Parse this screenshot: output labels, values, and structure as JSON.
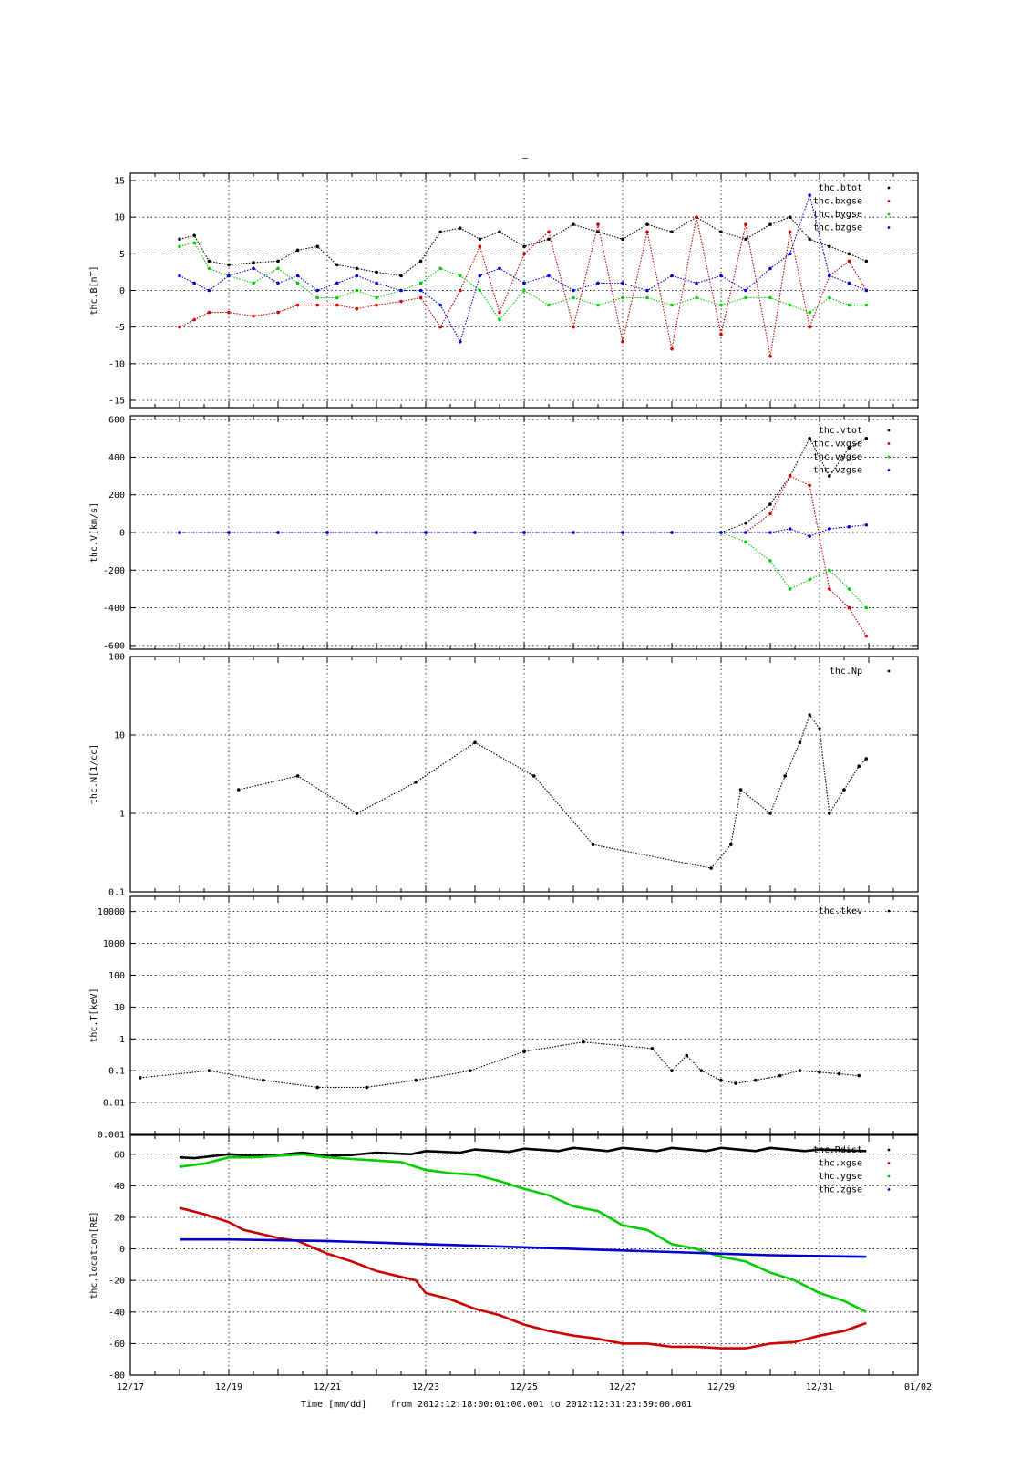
{
  "figure": {
    "top_title": "–",
    "xlabel_time": "Time [mm/dd]",
    "xlabel_range": "from 2012:12:18:00:01:00.001  to  2012:12:31:23:59:00.001",
    "x_tick_labels": [
      "12/17",
      "12/19",
      "12/21",
      "12/23",
      "12/25",
      "12/27",
      "12/29",
      "12/31",
      "01/02"
    ]
  },
  "colors": {
    "black": "#000000",
    "red": "#cc0000",
    "green": "#00cc00",
    "blue": "#0000cc"
  },
  "chart_data": [
    {
      "type": "scatter",
      "ylabel": "thc.B[nT]",
      "xlim": [
        "2012-12-17",
        "2013-01-02"
      ],
      "ylim": [
        -16,
        16
      ],
      "yticks": [
        -15,
        -10,
        -5,
        0,
        5,
        10,
        15
      ],
      "grid": true,
      "legend": "top-right",
      "series": [
        {
          "name": "thc.btot",
          "color": "#000000",
          "x": [
            18.0,
            18.3,
            18.6,
            19.0,
            19.5,
            20.0,
            20.4,
            20.8,
            21.2,
            21.6,
            22.0,
            22.5,
            22.9,
            23.3,
            23.7,
            24.1,
            24.5,
            25.0,
            25.5,
            26.0,
            26.5,
            27.0,
            27.5,
            28.0,
            28.5,
            29.0,
            29.5,
            30.0,
            30.4,
            30.8,
            31.2,
            31.6,
            31.95
          ],
          "y": [
            7,
            7.5,
            4,
            3.5,
            3.8,
            4,
            5.5,
            6,
            3.5,
            3,
            2.5,
            2,
            4,
            8,
            8.5,
            7,
            8,
            6,
            7,
            9,
            8,
            7,
            9,
            8,
            10,
            8,
            7,
            9,
            10,
            7,
            6,
            5,
            4
          ]
        },
        {
          "name": "thc.bxgse",
          "color": "#cc0000",
          "x": [
            18.0,
            18.3,
            18.6,
            19.0,
            19.5,
            20.0,
            20.4,
            20.8,
            21.2,
            21.6,
            22.0,
            22.5,
            22.9,
            23.3,
            23.7,
            24.1,
            24.5,
            25.0,
            25.5,
            26.0,
            26.5,
            27.0,
            27.5,
            28.0,
            28.5,
            29.0,
            29.5,
            30.0,
            30.4,
            30.8,
            31.2,
            31.6,
            31.95
          ],
          "y": [
            -5,
            -4,
            -3,
            -3,
            -3.5,
            -3,
            -2,
            -2,
            -2,
            -2.5,
            -2,
            -1.5,
            -1,
            -5,
            0,
            6,
            -3,
            5,
            8,
            -5,
            9,
            -7,
            8,
            -8,
            10,
            -6,
            9,
            -9,
            8,
            -5,
            2,
            4,
            0
          ]
        },
        {
          "name": "thc.bygse",
          "color": "#00cc00",
          "x": [
            18.0,
            18.3,
            18.6,
            19.0,
            19.5,
            20.0,
            20.4,
            20.8,
            21.2,
            21.6,
            22.0,
            22.5,
            22.9,
            23.3,
            23.7,
            24.1,
            24.5,
            25.0,
            25.5,
            26.0,
            26.5,
            27.0,
            27.5,
            28.0,
            28.5,
            29.0,
            29.5,
            30.0,
            30.4,
            30.8,
            31.2,
            31.6,
            31.95
          ],
          "y": [
            6,
            6.5,
            3,
            2,
            1,
            3,
            1,
            -1,
            -1,
            0,
            -1,
            0,
            1,
            3,
            2,
            0,
            -4,
            0,
            -2,
            -1,
            -2,
            -1,
            -1,
            -2,
            -1,
            -2,
            -1,
            -1,
            -2,
            -3,
            -1,
            -2,
            -2
          ]
        },
        {
          "name": "thc.bzgse",
          "color": "#0000cc",
          "x": [
            18.0,
            18.3,
            18.6,
            19.0,
            19.5,
            20.0,
            20.4,
            20.8,
            21.2,
            21.6,
            22.0,
            22.5,
            22.9,
            23.3,
            23.7,
            24.1,
            24.5,
            25.0,
            25.5,
            26.0,
            26.5,
            27.0,
            27.5,
            28.0,
            28.5,
            29.0,
            29.5,
            30.0,
            30.4,
            30.8,
            31.2,
            31.6,
            31.95
          ],
          "y": [
            2,
            1,
            0,
            2,
            3,
            1,
            2,
            0,
            1,
            2,
            1,
            0,
            0,
            -2,
            -7,
            2,
            3,
            1,
            2,
            0,
            1,
            1,
            0,
            2,
            1,
            2,
            0,
            3,
            5,
            13,
            2,
            1,
            0
          ]
        }
      ]
    },
    {
      "type": "scatter",
      "ylabel": "thc.V[km/s]",
      "xlim": [
        "2012-12-17",
        "2013-01-02"
      ],
      "ylim": [
        -620,
        620
      ],
      "yticks": [
        -600,
        -400,
        -200,
        0,
        200,
        400,
        600
      ],
      "grid": true,
      "legend": "top-right",
      "series": [
        {
          "name": "thc.vtot",
          "color": "#000000",
          "x": [
            18.0,
            19.0,
            20.0,
            21.0,
            22.0,
            23.0,
            24.0,
            25.0,
            26.0,
            27.0,
            28.0,
            29.0,
            29.5,
            30.0,
            30.4,
            30.8,
            31.2,
            31.6,
            31.95
          ],
          "y": [
            0,
            0,
            0,
            0,
            0,
            0,
            0,
            0,
            0,
            0,
            0,
            0,
            50,
            150,
            300,
            500,
            300,
            450,
            500
          ]
        },
        {
          "name": "thc.vxgse",
          "color": "#cc0000",
          "x": [
            18.0,
            19.0,
            20.0,
            21.0,
            22.0,
            23.0,
            24.0,
            25.0,
            26.0,
            27.0,
            28.0,
            29.0,
            29.5,
            30.0,
            30.4,
            30.8,
            31.2,
            31.6,
            31.95
          ],
          "y": [
            0,
            0,
            0,
            0,
            0,
            0,
            0,
            0,
            0,
            0,
            0,
            0,
            0,
            100,
            300,
            250,
            -300,
            -400,
            -550
          ]
        },
        {
          "name": "thc.vygse",
          "color": "#00cc00",
          "x": [
            18.0,
            19.0,
            20.0,
            21.0,
            22.0,
            23.0,
            24.0,
            25.0,
            26.0,
            27.0,
            28.0,
            29.0,
            29.5,
            30.0,
            30.4,
            30.8,
            31.2,
            31.6,
            31.95
          ],
          "y": [
            0,
            0,
            0,
            0,
            0,
            0,
            0,
            0,
            0,
            0,
            0,
            0,
            -50,
            -150,
            -300,
            -250,
            -200,
            -300,
            -400
          ]
        },
        {
          "name": "thc.vzgse",
          "color": "#0000cc",
          "x": [
            18.0,
            19.0,
            20.0,
            21.0,
            22.0,
            23.0,
            24.0,
            25.0,
            26.0,
            27.0,
            28.0,
            29.0,
            29.5,
            30.0,
            30.4,
            30.8,
            31.2,
            31.6,
            31.95
          ],
          "y": [
            0,
            0,
            0,
            0,
            0,
            0,
            0,
            0,
            0,
            0,
            0,
            0,
            0,
            0,
            20,
            -20,
            20,
            30,
            40
          ]
        }
      ]
    },
    {
      "type": "scatter",
      "ylabel": "thc.N[1/cc]",
      "xlim": [
        "2012-12-17",
        "2013-01-02"
      ],
      "ylim": [
        0.1,
        100
      ],
      "yscale": "log",
      "yticks": [
        0.1,
        1,
        10,
        100
      ],
      "grid": true,
      "legend": "top-right",
      "series": [
        {
          "name": "thc.Np",
          "color": "#000000",
          "x": [
            19.2,
            20.4,
            21.6,
            22.8,
            24.0,
            25.2,
            26.4,
            28.8,
            29.2,
            29.4,
            30.0,
            30.3,
            30.6,
            30.8,
            31.0,
            31.2,
            31.5,
            31.8,
            31.95
          ],
          "y": [
            2,
            3,
            1,
            2.5,
            8,
            3,
            0.4,
            0.2,
            0.4,
            2,
            1,
            3,
            8,
            18,
            12,
            1,
            2,
            4,
            5
          ]
        }
      ]
    },
    {
      "type": "scatter",
      "ylabel": "thc.T[keV]",
      "xlim": [
        "2012-12-17",
        "2013-01-02"
      ],
      "ylim": [
        0.001,
        30000
      ],
      "yscale": "log",
      "yticks": [
        0.001,
        0.01,
        0.1,
        1,
        10,
        100,
        1000,
        10000
      ],
      "ytick_labels": [
        "0.001",
        "0.01",
        "0.1",
        "1",
        "10",
        "100",
        "1000",
        "10000"
      ],
      "grid": true,
      "legend": "top-right",
      "series": [
        {
          "name": "thc.tkev",
          "color": "#000000",
          "x": [
            17.2,
            18.6,
            19.7,
            20.8,
            21.8,
            22.8,
            23.9,
            25.0,
            26.2,
            27.6,
            28.0,
            28.3,
            28.6,
            29.0,
            29.3,
            29.7,
            30.2,
            30.6,
            31.0,
            31.4,
            31.8
          ],
          "y": [
            0.06,
            0.1,
            0.05,
            0.03,
            0.03,
            0.05,
            0.1,
            0.4,
            0.8,
            0.5,
            0.1,
            0.3,
            0.1,
            0.05,
            0.04,
            0.05,
            0.07,
            0.1,
            0.09,
            0.08,
            0.07
          ]
        }
      ]
    },
    {
      "type": "line",
      "ylabel": "thc.location[RE]",
      "xlim": [
        "2012-12-17",
        "2013-01-02"
      ],
      "ylim": [
        -80,
        72
      ],
      "yticks": [
        -80,
        -60,
        -40,
        -20,
        0,
        20,
        40,
        60
      ],
      "grid": true,
      "legend": "top-right",
      "series": [
        {
          "name": "thc.Rdist",
          "color": "#000000",
          "x": [
            18.0,
            18.3,
            19.0,
            19.5,
            20.0,
            20.5,
            21.0,
            21.5,
            22.0,
            22.7,
            23.0,
            23.7,
            24.0,
            24.7,
            25.0,
            25.7,
            26.0,
            26.7,
            27.0,
            27.7,
            28.0,
            28.7,
            29.0,
            29.7,
            30.0,
            30.7,
            31.0,
            31.95
          ],
          "y": [
            58,
            57.5,
            60,
            59,
            59.5,
            61,
            59,
            59.5,
            61,
            60,
            62,
            61,
            63,
            61.5,
            63.5,
            62,
            64,
            62,
            64,
            62,
            64,
            62,
            64,
            62,
            64,
            62,
            63,
            62
          ]
        },
        {
          "name": "thc.xgse",
          "color": "#cc0000",
          "x": [
            18.0,
            18.5,
            19.0,
            19.3,
            20.0,
            20.4,
            21.0,
            21.5,
            22.0,
            22.8,
            23.0,
            23.5,
            24.0,
            24.5,
            25.0,
            25.5,
            26.0,
            26.5,
            27.0,
            27.5,
            28.0,
            28.5,
            29.0,
            29.5,
            30.0,
            30.5,
            31.0,
            31.5,
            31.95
          ],
          "y": [
            26,
            22,
            17,
            12,
            7,
            5,
            -3,
            -8,
            -14,
            -20,
            -28,
            -32,
            -38,
            -42,
            -48,
            -52,
            -55,
            -57,
            -60,
            -60,
            -62,
            -62,
            -63,
            -63,
            -60,
            -59,
            -55,
            -52,
            -47
          ]
        },
        {
          "name": "thc.ygse",
          "color": "#00cc00",
          "x": [
            18.0,
            18.5,
            19.0,
            19.5,
            20.0,
            20.5,
            21.0,
            21.5,
            22.0,
            22.5,
            23.0,
            23.5,
            24.0,
            24.5,
            25.0,
            25.5,
            26.0,
            26.5,
            27.0,
            27.5,
            28.0,
            28.5,
            29.0,
            29.5,
            30.0,
            30.5,
            31.0,
            31.5,
            31.95
          ],
          "y": [
            52,
            54,
            58,
            58,
            59,
            60,
            58,
            57,
            56,
            55,
            50,
            48,
            47,
            43,
            38,
            34,
            27,
            24,
            15,
            12,
            3,
            0,
            -5,
            -8,
            -15,
            -20,
            -28,
            -33,
            -40
          ]
        },
        {
          "name": "thc.zgse",
          "color": "#0000cc",
          "x": [
            18.0,
            19.0,
            20.0,
            21.0,
            22.0,
            23.0,
            24.0,
            25.0,
            26.0,
            27.0,
            28.0,
            29.0,
            30.0,
            31.0,
            31.95
          ],
          "y": [
            6,
            6,
            5.5,
            5,
            4,
            3,
            2,
            1,
            0,
            -1,
            -2,
            -3,
            -4,
            -4.5,
            -5
          ]
        }
      ]
    }
  ]
}
